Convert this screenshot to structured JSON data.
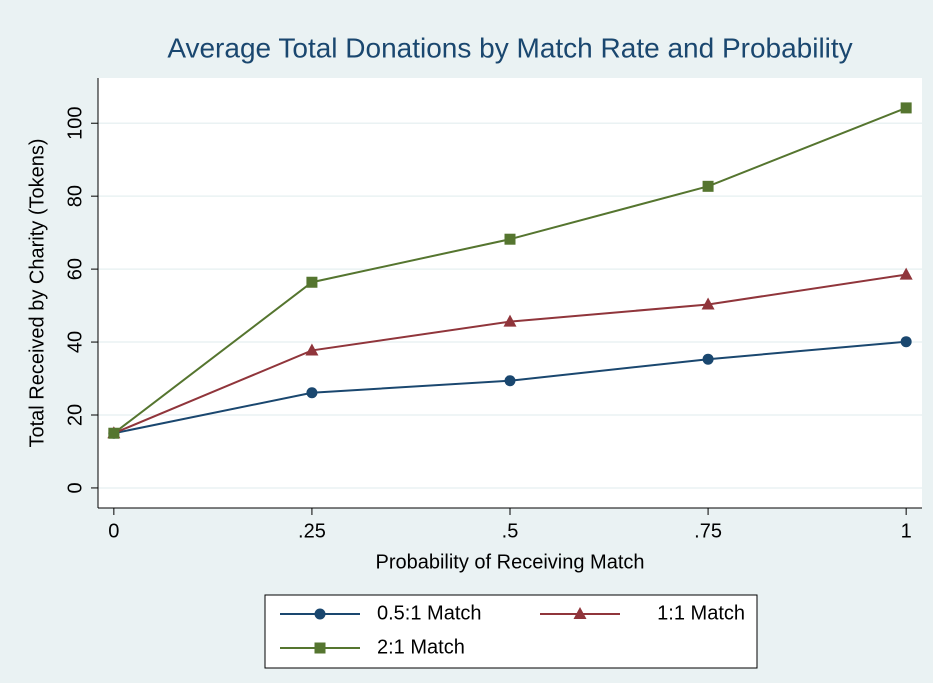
{
  "chart_data": {
    "type": "line",
    "title": "Average Total Donations by Match Rate and Probability",
    "xlabel": "Probability of Receiving Match",
    "ylabel": "Total Received by Charity (Tokens)",
    "x": [
      0,
      0.25,
      0.5,
      0.75,
      1
    ],
    "xlim": [
      -0.02,
      1.02
    ],
    "xticks": [
      0,
      {
        "value": 0.25,
        "label": ".25"
      },
      {
        "value": 0.5,
        "label": ".5"
      },
      {
        "value": 0.75,
        "label": ".75"
      },
      1
    ],
    "ylim": [
      -5.5,
      112.4
    ],
    "yticks": [
      0,
      20,
      40,
      60,
      80,
      100
    ],
    "grid": true,
    "legend": "bottom",
    "series": [
      {
        "name": "0.5:1 Match",
        "color": "#1a476f",
        "marker": "circle",
        "values": [
          15,
          26.1,
          29.4,
          35.3,
          40.1
        ]
      },
      {
        "name": "1:1 Match",
        "color": "#90353b",
        "marker": "triangle",
        "values": [
          15,
          37.7,
          45.6,
          50.3,
          58.5
        ]
      },
      {
        "name": "2:1 Match",
        "color": "#55752f",
        "marker": "square",
        "values": [
          15,
          56.4,
          68.2,
          82.7,
          104.2
        ]
      }
    ]
  }
}
